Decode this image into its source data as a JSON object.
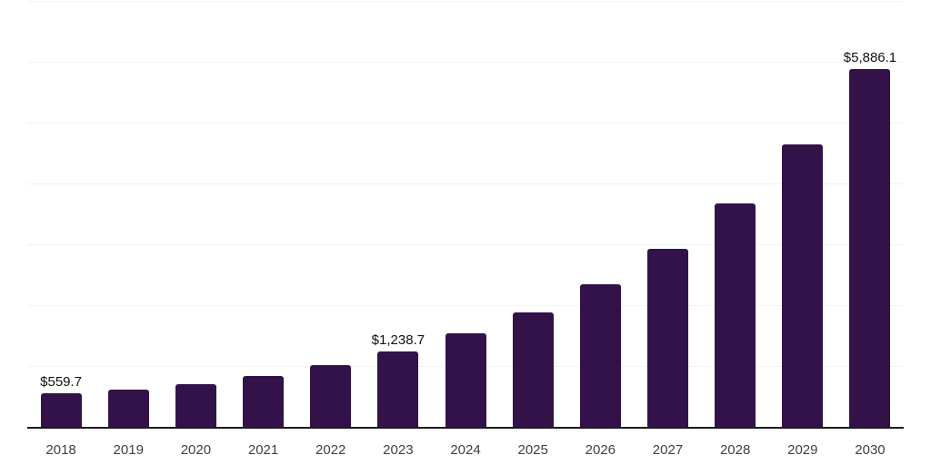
{
  "chart_data": {
    "type": "bar",
    "title": "",
    "xlabel": "",
    "ylabel": "",
    "categories": [
      "2018",
      "2019",
      "2020",
      "2021",
      "2022",
      "2023",
      "2024",
      "2025",
      "2026",
      "2027",
      "2028",
      "2029",
      "2030"
    ],
    "values": [
      559.7,
      615,
      705,
      830,
      1020,
      1238.7,
      1535,
      1880,
      2350,
      2925,
      3670,
      4640,
      5886.1
    ],
    "value_labels": [
      "$559.7",
      "",
      "",
      "",
      "",
      "$1,238.7",
      "",
      "",
      "",
      "",
      "",
      "",
      "$5,886.1"
    ],
    "ylim": [
      0,
      7000
    ],
    "gridline_step": 1000,
    "grid": true,
    "legend": "none",
    "colors": {
      "bar": "#331249",
      "axis": "#1a1a1a",
      "gridline": "#f2f2f5",
      "value_label": "#111111",
      "tick_label": "#404040",
      "background": "#ffffff"
    }
  }
}
